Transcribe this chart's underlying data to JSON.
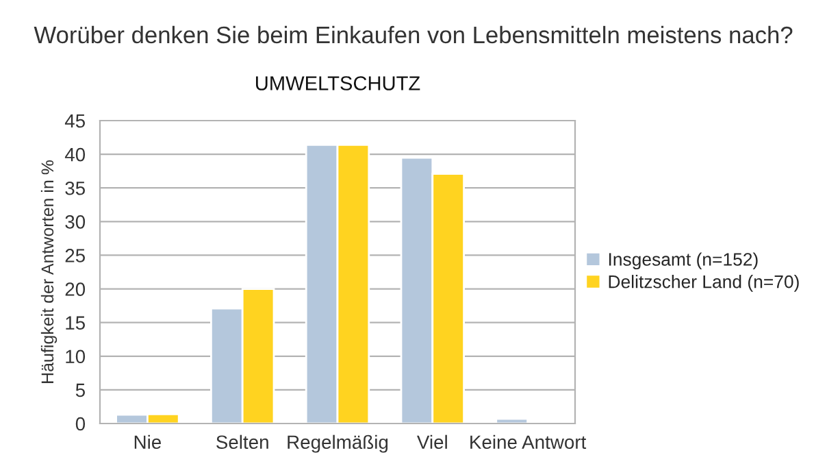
{
  "chart_data": {
    "type": "bar",
    "title": "Worüber denken Sie beim Einkaufen von Lebensmitteln meistens nach?",
    "subtitle": "UMWELTSCHUTZ",
    "ylabel": "Häufigkeit der Antworten in %",
    "categories": [
      "Nie",
      "Selten",
      "Regelmäßig",
      "Viel",
      "Keine Antwort"
    ],
    "series": [
      {
        "name": "Insgesamt (n=152)",
        "color": "#b4c7dc",
        "values": [
          1.3,
          17.1,
          41.4,
          39.5,
          0.7
        ]
      },
      {
        "name": "Delitzscher Land (n=70)",
        "color": "#ffd320",
        "values": [
          1.4,
          20.0,
          41.4,
          37.1,
          null
        ]
      }
    ],
    "ylim": [
      0,
      45
    ],
    "yticks": [
      0,
      5,
      10,
      15,
      20,
      25,
      30,
      35,
      40,
      45
    ],
    "grid": "y",
    "legend": "right"
  }
}
